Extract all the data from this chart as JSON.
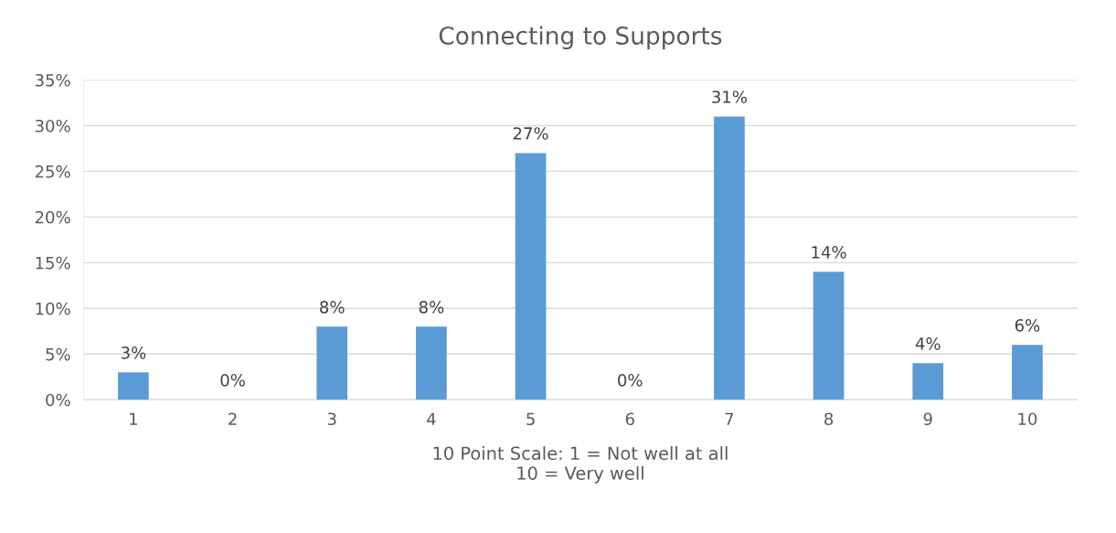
{
  "chart_data": {
    "type": "bar",
    "title": "Connecting to Supports",
    "xlabel": "10 Point Scale: 1 = Not well at all\n10 = Very well",
    "categories": [
      "1",
      "2",
      "3",
      "4",
      "5",
      "6",
      "7",
      "8",
      "9",
      "10"
    ],
    "values": [
      3,
      0,
      8,
      8,
      27,
      0,
      31,
      14,
      4,
      6
    ],
    "value_labels": [
      "3%",
      "0%",
      "8%",
      "8%",
      "27%",
      "0%",
      "31%",
      "14%",
      "4%",
      "6%"
    ],
    "color": "#5b9bd5",
    "ylim": [
      0,
      35
    ],
    "yticks": [
      {
        "value": 0,
        "label": "0%"
      },
      {
        "value": 5,
        "label": "5%"
      },
      {
        "value": 10,
        "label": "10%"
      },
      {
        "value": 15,
        "label": "15%"
      },
      {
        "value": 20,
        "label": "20%"
      },
      {
        "value": 25,
        "label": "25%"
      },
      {
        "value": 30,
        "label": "30%"
      },
      {
        "value": 35,
        "label": "35%"
      }
    ],
    "grid": "y",
    "legend": false
  }
}
